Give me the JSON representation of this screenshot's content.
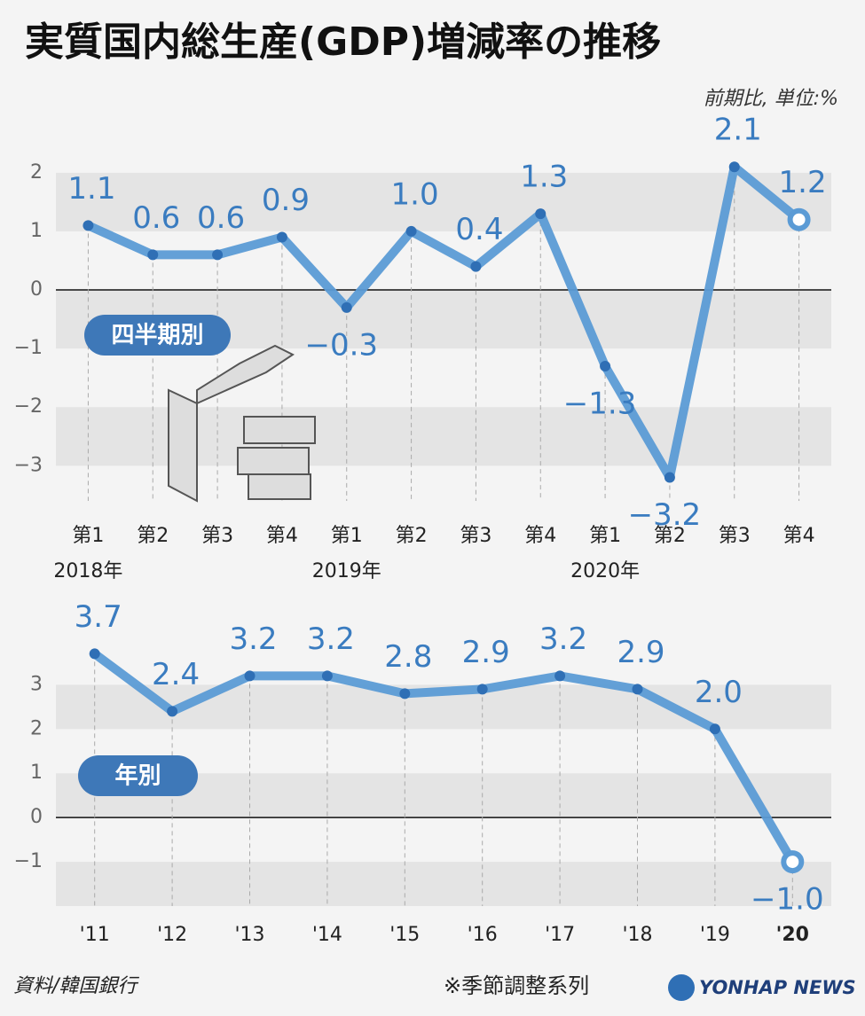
{
  "title": "実質国内総生産(GDP)増減率の推移",
  "unit_note": "前期比, 単位:%",
  "source": "資料/韓国銀行",
  "footnote": "※季節調整系列",
  "logo": "YONHAP NEWS",
  "chart_data": [
    {
      "type": "line",
      "label": "四半期別",
      "categories": [
        "第1",
        "第2",
        "第3",
        "第4",
        "第1",
        "第2",
        "第3",
        "第4",
        "第1",
        "第2",
        "第3",
        "第4"
      ],
      "categories2": [
        "2018年",
        null,
        null,
        null,
        "2019年",
        null,
        null,
        null,
        "2020年",
        null,
        null,
        null
      ],
      "values": [
        1.1,
        0.6,
        0.6,
        0.9,
        -0.3,
        1.0,
        0.4,
        1.3,
        -1.3,
        -3.2,
        2.1,
        1.2
      ],
      "value_labels": [
        "1.1",
        "0.6",
        "0.6",
        "0.9",
        "−0.3",
        "1.0",
        "0.4",
        "1.3",
        "−1.3",
        "−3.2",
        "2.1",
        "1.2"
      ],
      "color": "#5b9bd5",
      "ylim": [
        -3.6,
        2.3
      ],
      "yticks": [
        2,
        1,
        0,
        {
          "value": -1,
          "label": "−1"
        },
        {
          "value": -2,
          "label": "−2"
        },
        {
          "value": -3,
          "label": "−3"
        }
      ],
      "grid": "bands",
      "highlight_last": true
    },
    {
      "type": "line",
      "label": "年別",
      "categories": [
        "'11",
        "'12",
        "'13",
        "'14",
        "'15",
        "'16",
        "'17",
        "'18",
        "'19",
        "'20"
      ],
      "values": [
        3.7,
        2.4,
        3.2,
        3.2,
        2.8,
        2.9,
        3.2,
        2.9,
        2.0,
        -1.0
      ],
      "value_labels": [
        "3.7",
        "2.4",
        "3.2",
        "3.2",
        "2.8",
        "2.9",
        "3.2",
        "2.9",
        "2.0",
        "−1.0"
      ],
      "color": "#5b9bd5",
      "ylim": [
        -2,
        4.55
      ],
      "yticks": [
        3,
        2,
        1,
        0,
        {
          "value": -1,
          "label": "−1"
        }
      ],
      "grid": "bands",
      "highlight_last": true,
      "emphasize_last_category": true
    }
  ]
}
